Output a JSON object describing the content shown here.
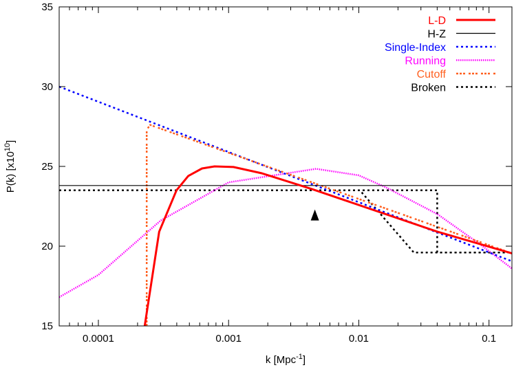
{
  "chart_data": {
    "type": "line",
    "title": "",
    "xlabel": "k [Mpc",
    "xlabel_sup": "-1",
    "xlabel_end": "]",
    "ylabel": "P(k) [x10",
    "ylabel_sup": "10",
    "ylabel_end": "]",
    "x_scale": "log",
    "xlim": [
      5e-05,
      0.15
    ],
    "ylim": [
      15,
      35
    ],
    "grid": false,
    "legend_position": "top-right",
    "x_ticks": [
      {
        "value": 0.0001,
        "label": "0.0001"
      },
      {
        "value": 0.001,
        "label": "0.001"
      },
      {
        "value": 0.01,
        "label": "0.01"
      },
      {
        "value": 0.1,
        "label": "0.1"
      }
    ],
    "y_ticks": [
      {
        "value": 15,
        "label": "15"
      },
      {
        "value": 20,
        "label": "20"
      },
      {
        "value": 25,
        "label": "25"
      },
      {
        "value": 30,
        "label": "30"
      },
      {
        "value": 35,
        "label": "35"
      }
    ],
    "series": [
      {
        "name": "L-D",
        "color": "#ff0000",
        "style": "solid-thick",
        "x": [
          0.000227,
          0.000293,
          0.000398,
          0.00049,
          0.000625,
          0.00078,
          0.00109,
          0.0018,
          0.00436,
          0.0403,
          0.15
        ],
        "y": [
          15,
          20.9,
          23.5,
          24.4,
          24.87,
          25.0,
          24.96,
          24.57,
          23.58,
          20.9,
          19.55
        ]
      },
      {
        "name": "H-Z",
        "color": "#000000",
        "style": "solid-thin",
        "x": [
          5e-05,
          0.15
        ],
        "y": [
          23.8,
          23.8
        ]
      },
      {
        "name": "Single-Index",
        "color": "#0000ff",
        "style": "dotted",
        "x": [
          5e-05,
          0.15
        ],
        "y": [
          30.0,
          19.05
        ]
      },
      {
        "name": "Running",
        "color": "#ff00ff",
        "style": "fine-dotted",
        "x": [
          5e-05,
          0.0001,
          0.0003,
          0.001,
          0.0047,
          0.01,
          0.0164,
          0.0403,
          0.088,
          0.15
        ],
        "y": [
          16.8,
          18.2,
          21.6,
          24.0,
          24.85,
          24.44,
          23.66,
          22.0,
          20.04,
          18.6
        ]
      },
      {
        "name": "Cutoff",
        "color": "#ff6020",
        "style": "dash-dot",
        "x": [
          0.000235,
          0.000235,
          0.00025,
          0.15
        ],
        "y": [
          15,
          27.3,
          27.6,
          19.55
        ]
      },
      {
        "name": "Broken",
        "color": "#000000",
        "style": "dotted-black",
        "x": [
          5e-05,
          0.04,
          0.04,
          0.15
        ],
        "y": [
          23.5,
          23.5,
          19.6,
          19.6
        ]
      },
      {
        "name": "",
        "color": "#000000",
        "style": "dotted-black",
        "x": [
          5e-05,
          0.0102,
          0.0265,
          0.15
        ],
        "y": [
          23.5,
          23.5,
          19.6,
          19.6
        ]
      }
    ],
    "annotations": [
      {
        "type": "arrow-up",
        "x": 0.0046,
        "y": 22.3,
        "color": "#000000"
      }
    ]
  }
}
